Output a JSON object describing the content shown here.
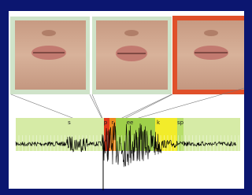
{
  "segments": [
    {
      "label": "s"
    },
    {
      "label": "p"
    },
    {
      "label": "r"
    },
    {
      "label": "ee"
    },
    {
      "label": "k"
    },
    {
      "label": "sp"
    }
  ]
}
